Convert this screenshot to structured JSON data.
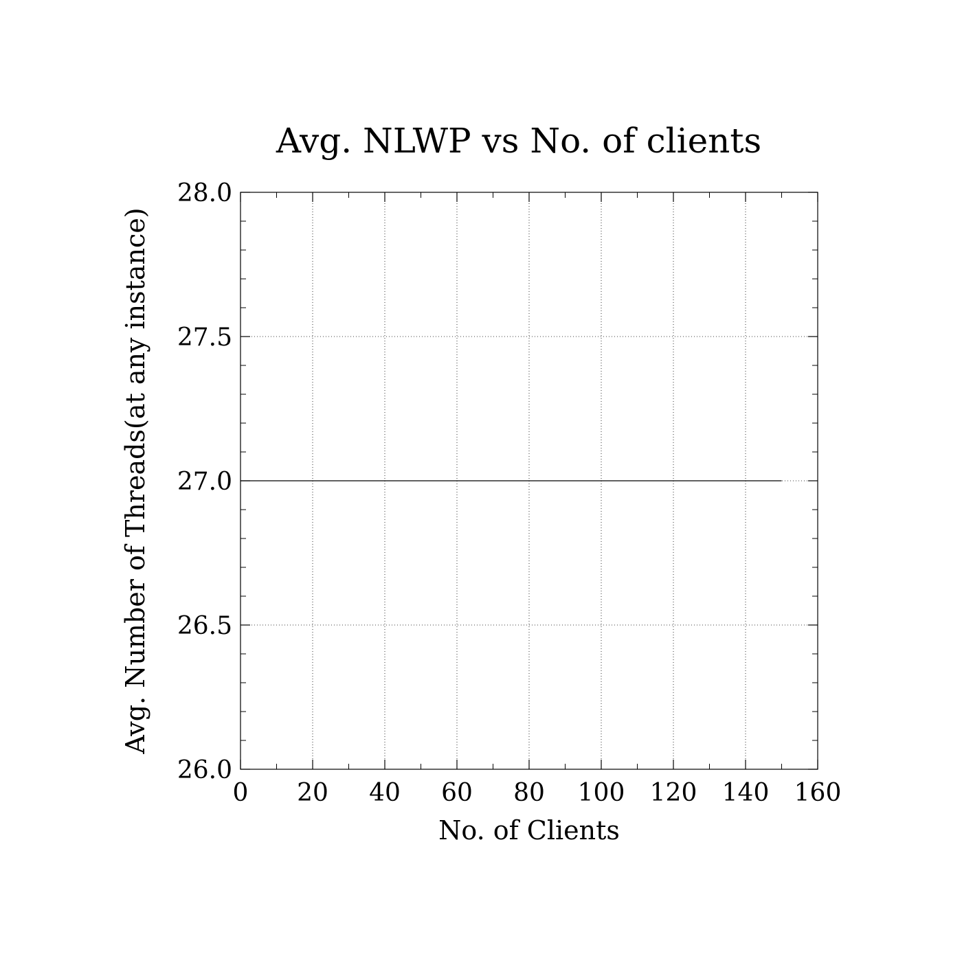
{
  "chart_data": {
    "type": "line",
    "title": "Avg. NLWP vs No. of clients",
    "xlabel": "No. of Clients",
    "ylabel": "Avg. Number of Threads(at any instance)",
    "xlim": [
      0,
      160
    ],
    "ylim": [
      26.0,
      28.0
    ],
    "x_ticks": [
      "0",
      "20",
      "40",
      "60",
      "80",
      "100",
      "120",
      "140",
      "160"
    ],
    "y_ticks": [
      "26.0",
      "26.5",
      "27.0",
      "27.5",
      "28.0"
    ],
    "grid": true,
    "series": [
      {
        "x": [
          0,
          150
        ],
        "y": [
          27.0,
          27.0
        ]
      }
    ]
  }
}
